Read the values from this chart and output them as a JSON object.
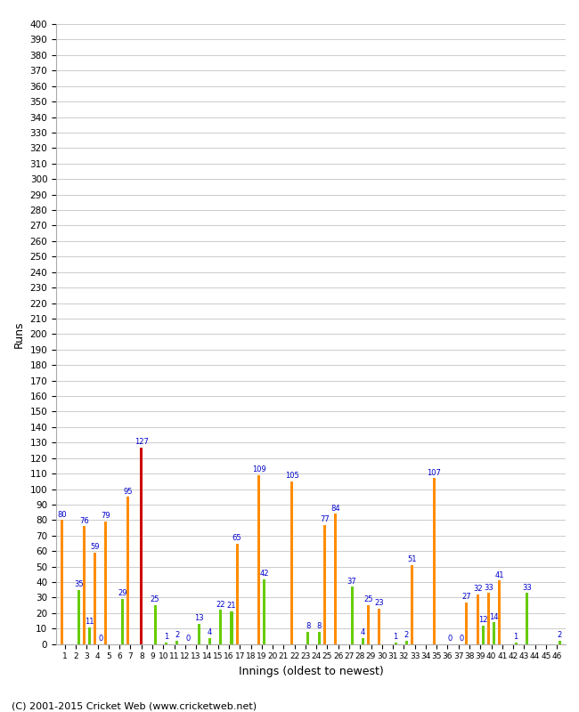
{
  "xlabel": "Innings (oldest to newest)",
  "ylabel": "Runs",
  "footer": "(C) 2001-2015 Cricket Web (www.cricketweb.net)",
  "ylim": [
    0,
    400
  ],
  "yticks": [
    0,
    10,
    20,
    30,
    40,
    50,
    60,
    70,
    80,
    90,
    100,
    110,
    120,
    130,
    140,
    150,
    160,
    170,
    180,
    190,
    200,
    210,
    220,
    230,
    240,
    250,
    260,
    270,
    280,
    290,
    300,
    310,
    320,
    330,
    340,
    350,
    360,
    370,
    380,
    390,
    400
  ],
  "innings": [
    1,
    2,
    3,
    4,
    5,
    6,
    7,
    8,
    9,
    10,
    11,
    12,
    13,
    14,
    15,
    16,
    17,
    18,
    19,
    20,
    21,
    22,
    23,
    24,
    25,
    26,
    27,
    28,
    29,
    30,
    31,
    32,
    33,
    34,
    35,
    36,
    37,
    38,
    39,
    40,
    41,
    42,
    43,
    44,
    45,
    46
  ],
  "orange_values": [
    80,
    0,
    76,
    59,
    79,
    0,
    95,
    0,
    0,
    0,
    0,
    0,
    0,
    0,
    0,
    0,
    65,
    0,
    109,
    0,
    0,
    105,
    0,
    0,
    77,
    84,
    0,
    0,
    25,
    23,
    0,
    0,
    51,
    0,
    107,
    0,
    0,
    27,
    32,
    33,
    41,
    0,
    0,
    0,
    0,
    0
  ],
  "red_values": [
    0,
    0,
    0,
    0,
    0,
    0,
    0,
    127,
    0,
    0,
    0,
    0,
    0,
    0,
    0,
    0,
    0,
    0,
    0,
    0,
    0,
    0,
    0,
    0,
    0,
    0,
    0,
    0,
    0,
    0,
    0,
    0,
    0,
    0,
    0,
    0,
    0,
    0,
    0,
    0,
    0,
    0,
    0,
    0,
    0,
    0
  ],
  "green_values": [
    0,
    35,
    11,
    0,
    0,
    29,
    0,
    0,
    25,
    1,
    2,
    0,
    13,
    4,
    22,
    21,
    0,
    0,
    42,
    0,
    0,
    0,
    8,
    8,
    0,
    0,
    37,
    4,
    0,
    0,
    1,
    2,
    0,
    0,
    0,
    0,
    0,
    0,
    12,
    14,
    0,
    1,
    33,
    0,
    0,
    2
  ],
  "zero_labeled_green_idx": [
    3,
    8,
    11,
    22,
    30,
    31,
    35,
    36
  ],
  "bar_colors": {
    "orange": "#ff8c00",
    "red": "#cc0000",
    "green": "#66cc00"
  },
  "background_color": "#ffffff",
  "grid_color": "#cccccc",
  "label_color": "#0000cc",
  "label_fontsize": 6.0,
  "tick_fontsize": 7.5,
  "ylabel_fontsize": 9,
  "xlabel_fontsize": 9,
  "footer_fontsize": 8
}
